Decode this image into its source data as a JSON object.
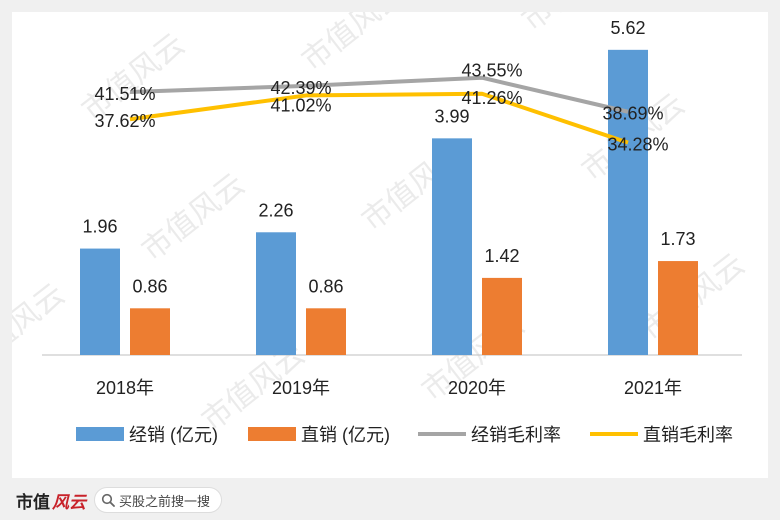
{
  "chart_data": {
    "type": "bar",
    "categories": [
      "2018年",
      "2019年",
      "2020年",
      "2021年"
    ],
    "series": [
      {
        "name": "经销 (亿元)",
        "kind": "bar",
        "color": "#5b9bd5",
        "values": [
          1.96,
          2.26,
          3.99,
          5.62
        ],
        "labels": [
          "1.96",
          "2.26",
          "3.99",
          "5.62"
        ]
      },
      {
        "name": "直销 (亿元)",
        "kind": "bar",
        "color": "#ed7d31",
        "values": [
          0.86,
          0.86,
          1.42,
          1.73
        ],
        "labels": [
          "0.86",
          "0.86",
          "1.42",
          "1.73"
        ]
      },
      {
        "name": "经销毛利率",
        "kind": "line",
        "color": "#a5a5a5",
        "values": [
          41.51,
          42.39,
          43.55,
          38.69
        ],
        "labels": [
          "41.51%",
          "42.39%",
          "43.55%",
          "38.69%"
        ]
      },
      {
        "name": "直销毛利率",
        "kind": "line",
        "color": "#ffc000",
        "values": [
          37.62,
          41.02,
          41.26,
          34.28
        ],
        "labels": [
          "37.62%",
          "41.02%",
          "41.26%",
          "34.28%"
        ]
      }
    ],
    "grid": false,
    "legend_position": "bottom"
  },
  "watermark": "市值风云",
  "footer": {
    "brand_text": "市值",
    "brand_script": "风云",
    "search_text": "买股之前搜一搜",
    "search_icon": "search-icon"
  }
}
